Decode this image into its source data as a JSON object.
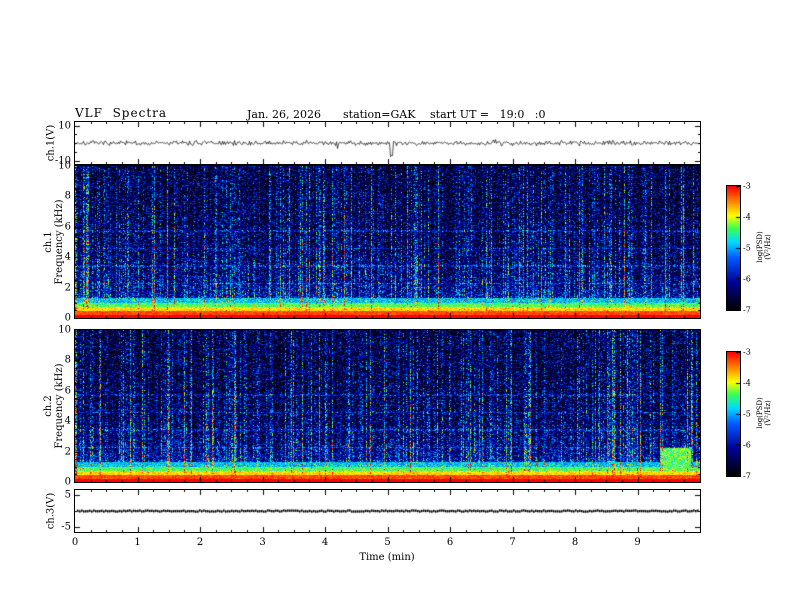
{
  "header": {
    "title": "VLF  Spectra",
    "date": "Jan. 26, 2026",
    "station": "station=GAK",
    "start_ut": "start UT =   19:0   :0"
  },
  "xaxis": {
    "label": "Time (min)",
    "range": [
      0,
      10
    ],
    "ticks": [
      0,
      1,
      2,
      3,
      4,
      5,
      6,
      7,
      8,
      9
    ]
  },
  "chart_data": [
    {
      "type": "line",
      "name": "ch1-waveform",
      "ylabel": "ch.1(V)",
      "ylim": [
        -10,
        10
      ],
      "yticks": [
        10,
        -10
      ],
      "line_color": "#000000",
      "description": "Broadband noise trace centered on 0 V, ~±2 V, sporadic impulsive spikes, largest dip near t=5.05 min",
      "render": {
        "seed": 7,
        "spikes": [
          {
            "t": 5.05,
            "v": -7.5
          }
        ]
      }
    },
    {
      "type": "heatmap",
      "name": "ch1-spectrogram",
      "ylabel": "ch.1\nFrequency (kHz)",
      "ylim": [
        0,
        10
      ],
      "yticks": [
        0,
        2,
        4,
        6,
        8,
        10
      ],
      "value_range": [
        -7,
        -3
      ],
      "colorbar_label": "log(PSD)(V²/Hz)",
      "colorbar_ticks": [
        -3,
        -4,
        -5,
        -6,
        -7
      ],
      "colormap": "black-blue-cyan-green-yellow-red",
      "description": "Dense vertical sferic streaks (blue/green/yellow) over dark background; intense red-orange hum band below ~0.5 kHz; faint horizontal harmonic lines in lower half",
      "render": {
        "seed": 101
      }
    },
    {
      "type": "heatmap",
      "name": "ch2-spectrogram",
      "ylabel": "ch.2\nFrequency (kHz)",
      "ylim": [
        0,
        10
      ],
      "yticks": [
        0,
        2,
        4,
        6,
        8,
        10
      ],
      "value_range": [
        -7,
        -3
      ],
      "colorbar_label": "log(PSD)(V²/Hz)",
      "colorbar_ticks": [
        -3,
        -4,
        -5,
        -6,
        -7
      ],
      "colormap": "black-blue-cyan-green-yellow-red",
      "description": "Similar to ch.1; bright green-cyan patch near t≈9.5 min below ~2.3 kHz",
      "render": {
        "seed": 202,
        "blob": {
          "t0": 9.35,
          "t1": 9.85,
          "f0": 0.7,
          "f1": 2.3
        }
      }
    },
    {
      "type": "line",
      "name": "ch3-waveform",
      "ylabel": "ch.3(V)",
      "ylim": [
        -5,
        5
      ],
      "yticks": [
        5,
        -5
      ],
      "line_color": "#000000",
      "description": "Constant 0 V dotted trace across the full interval",
      "render": {
        "seed": 9
      }
    }
  ]
}
